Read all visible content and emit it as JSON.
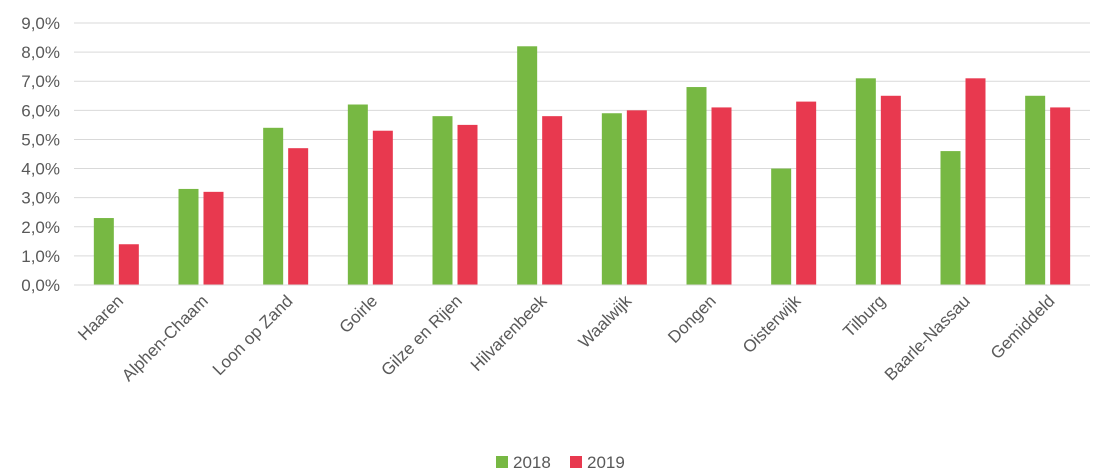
{
  "chart_data": {
    "type": "bar",
    "categories": [
      "Haaren",
      "Alphen-Chaam",
      "Loon op Zand",
      "Goirle",
      "Gilze en Rijen",
      "Hilvarenbeek",
      "Waalwijk",
      "Dongen",
      "Oisterwijk",
      "Tilburg",
      "Baarle-Nassau",
      "Gemiddeld"
    ],
    "series": [
      {
        "name": "2018",
        "color": "#77b843",
        "values": [
          2.3,
          3.3,
          5.4,
          6.2,
          5.8,
          8.2,
          5.9,
          6.8,
          4.0,
          7.1,
          4.6,
          6.5
        ]
      },
      {
        "name": "2019",
        "color": "#e8394f",
        "values": [
          1.4,
          3.2,
          4.7,
          5.3,
          5.5,
          5.8,
          6.0,
          6.1,
          6.3,
          6.5,
          7.1,
          6.1
        ]
      }
    ],
    "ylim": [
      0,
      9
    ],
    "yticks": [
      "0,0%",
      "1,0%",
      "2,0%",
      "3,0%",
      "4,0%",
      "5,0%",
      "6,0%",
      "7,0%",
      "8,0%",
      "9,0%"
    ],
    "title": "",
    "xlabel": "",
    "ylabel": "",
    "grid": true,
    "legend": "bottom-center"
  }
}
